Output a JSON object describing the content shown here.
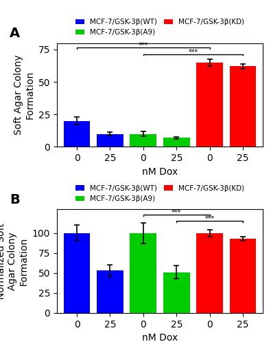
{
  "chart_data": [
    {
      "type": "bar",
      "title": "A",
      "y_label": "Soft Agar Colony\nFormation",
      "x_label": "nM Dox",
      "categories": [
        "0",
        "25",
        "0",
        "25",
        "0",
        "25"
      ],
      "series": [
        {
          "name": "MCF-7/GSK-3β(WT)",
          "color": "#0000FF",
          "values": [
            20,
            10,
            null,
            null,
            null,
            null
          ],
          "errors": [
            3.0,
            1.2,
            null,
            null,
            null,
            null
          ]
        },
        {
          "name": "MCF-7/GSK-3β(A9)",
          "color": "#00CC00",
          "values": [
            null,
            null,
            10,
            7,
            null,
            null
          ],
          "errors": [
            null,
            null,
            1.8,
            0.8,
            null,
            null
          ]
        },
        {
          "name": "MCF-7/GSK-3β(KD)",
          "color": "#FF0000",
          "values": [
            null,
            null,
            null,
            null,
            65,
            62
          ],
          "errors": [
            null,
            null,
            null,
            null,
            2.5,
            2.0
          ]
        }
      ],
      "ylim": [
        0,
        80
      ],
      "yticks": [
        0,
        25,
        50,
        75
      ],
      "legend": "lower center",
      "annotations": [
        {
          "text": "***",
          "from": 0,
          "to": 4,
          "y": 76.5
        },
        {
          "text": "***",
          "from": 2,
          "to": 5,
          "y": 71.5
        }
      ]
    },
    {
      "type": "bar",
      "title": "B",
      "y_label": "Normalized Soft\nAgar Colony\nFormation",
      "x_label": "nM Dox",
      "categories": [
        "0",
        "25",
        "0",
        "25",
        "0",
        "25"
      ],
      "series": [
        {
          "name": "MCF-7/GSK-3β(WT)",
          "color": "#0000FF",
          "values": [
            100,
            53,
            null,
            null,
            null,
            null
          ],
          "errors": [
            10.0,
            7.0,
            null,
            null,
            null,
            null
          ]
        },
        {
          "name": "MCF-7/GSK-3β(A9)",
          "color": "#00CC00",
          "values": [
            null,
            null,
            100,
            51,
            null,
            null
          ],
          "errors": [
            null,
            null,
            13.0,
            8.0,
            null,
            null
          ]
        },
        {
          "name": "MCF-7/GSK-3β(KD)",
          "color": "#FF0000",
          "values": [
            null,
            null,
            null,
            null,
            100,
            93
          ],
          "errors": [
            null,
            null,
            null,
            null,
            4.0,
            3.0
          ]
        }
      ],
      "ylim": [
        0,
        130
      ],
      "yticks": [
        0,
        25,
        50,
        75,
        100
      ],
      "legend": "lower center",
      "annotations": [
        {
          "text": "***",
          "from": 2,
          "to": 4,
          "y": 123
        },
        {
          "text": "***",
          "from": 3,
          "to": 5,
          "y": 115
        }
      ]
    }
  ]
}
